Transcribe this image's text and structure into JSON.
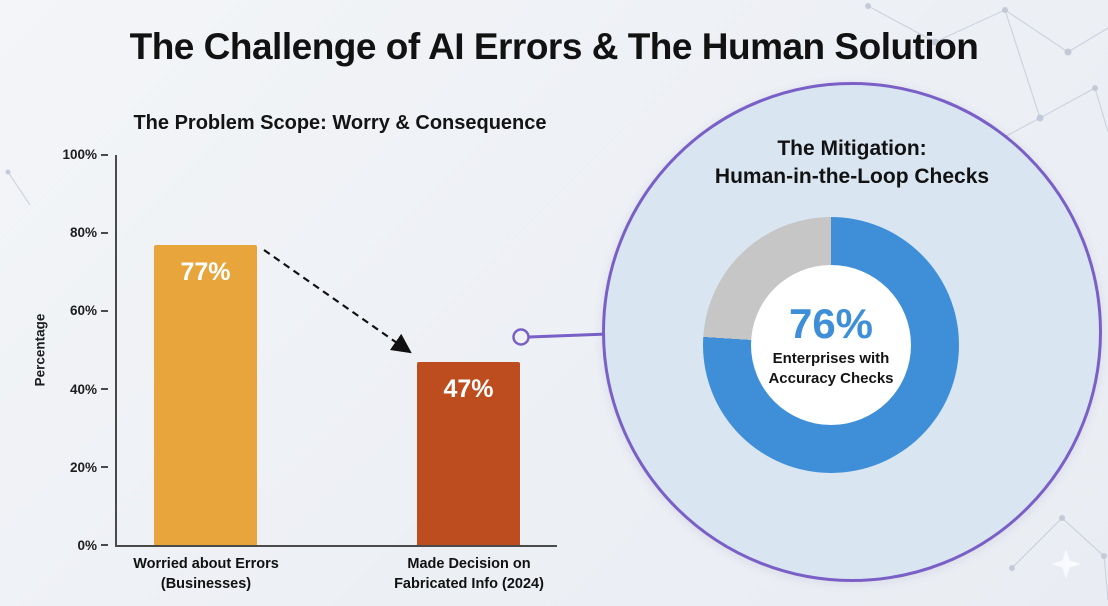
{
  "page": {
    "title": "The Challenge of AI Errors & The Human Solution"
  },
  "bar_chart": {
    "title": "The Problem Scope: Worry & Consequence",
    "ylabel": "Percentage",
    "yticks": [
      "100%",
      "80%",
      "60%",
      "40%",
      "20%",
      "0%"
    ],
    "bars": [
      {
        "label": "Worried about Errors\n(Businesses)",
        "value": 77,
        "display": "77%",
        "color": "#E8A53C"
      },
      {
        "label": "Made Decision on\nFabricated Info (2024)",
        "value": 47,
        "display": "47%",
        "color": "#BD4C1E"
      }
    ]
  },
  "mitigation": {
    "title": "The Mitigation:\nHuman-in-the-Loop Checks",
    "circle_fill": "#D9E6F2",
    "circle_border": "#7A5FC7",
    "donut": {
      "value": 76,
      "display": "76%",
      "label": "Enterprises with\nAccuracy Checks",
      "primary_color": "#3E8FD8",
      "remainder_color": "#C6C6C6"
    }
  },
  "chart_data": [
    {
      "type": "bar",
      "title": "The Problem Scope: Worry & Consequence",
      "categories": [
        "Worried about Errors (Businesses)",
        "Made Decision on Fabricated Info (2024)"
      ],
      "values": [
        77,
        47
      ],
      "xlabel": "",
      "ylabel": "Percentage",
      "ylim": [
        0,
        100
      ],
      "yticks": [
        0,
        20,
        40,
        60,
        80,
        100
      ],
      "grid": false,
      "bar_colors": [
        "#E8A53C",
        "#BD4C1E"
      ],
      "annotations": [
        "dashed arrow from top of 77% bar down to top of 47% bar"
      ]
    },
    {
      "type": "pie",
      "subtype": "donut",
      "title": "The Mitigation: Human-in-the-Loop Checks",
      "labels": [
        "Enterprises with Accuracy Checks",
        "Remainder"
      ],
      "values": [
        76,
        24
      ],
      "colors": [
        "#3E8FD8",
        "#C6C6C6"
      ],
      "center_text": "76% Enterprises with Accuracy Checks"
    }
  ]
}
